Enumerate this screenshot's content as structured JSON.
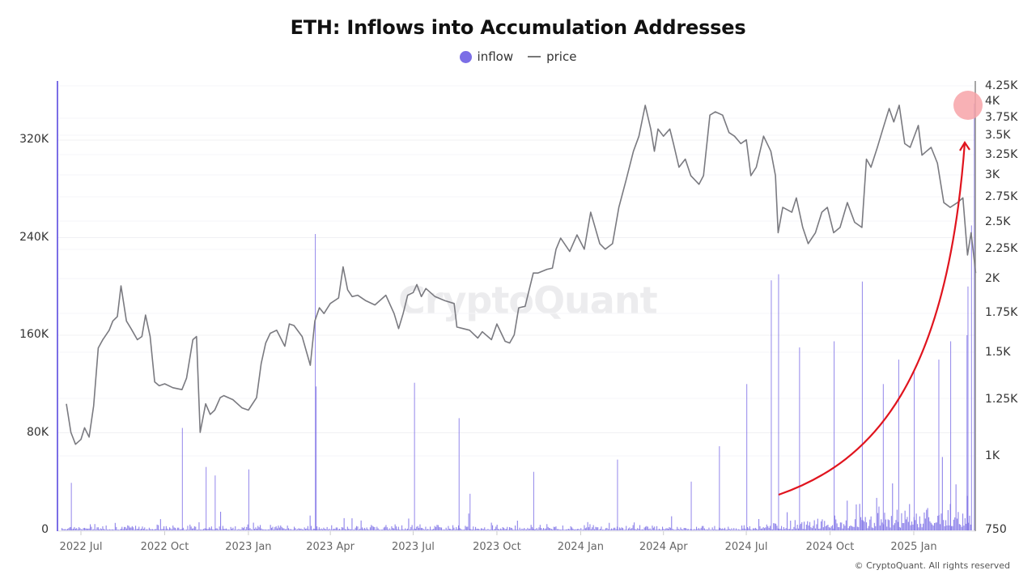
{
  "title": "ETH: Inflows into Accumulation Addresses",
  "legend": [
    {
      "label": "inflow",
      "color": "#7b6ee6",
      "marker": "circle"
    },
    {
      "label": "price",
      "color": "#777777",
      "marker": "line"
    }
  ],
  "watermark": "CryptoQuant",
  "copyright": "© CryptoQuant. All rights reserved",
  "chart_data": {
    "type": "bar+line",
    "title": "ETH: Inflows into Accumulation Addresses",
    "xlabel": "",
    "ylabel_left": "inflow",
    "ylabel_right": "price",
    "x_tick_labels": [
      "2022 Jul",
      "2022 Oct",
      "2023 Jan",
      "2023 Apr",
      "2023 Jul",
      "2023 Oct",
      "2024 Jan",
      "2024 Apr",
      "2024 Jul",
      "2024 Oct",
      "2025 Jan"
    ],
    "y_left_ticks": [
      "0",
      "80K",
      "160K",
      "240K",
      "320K"
    ],
    "y_left_range": [
      0,
      360000
    ],
    "y_right_ticks": [
      "750",
      "1K",
      "1.25K",
      "1.5K",
      "1.75K",
      "2K",
      "2.25K",
      "2.5K",
      "2.75K",
      "3K",
      "3.25K",
      "3.5K",
      "3.75K",
      "4K",
      "4.25K"
    ],
    "y_right_range": [
      750,
      4300
    ],
    "y_right_scale": "log",
    "grid": true,
    "legend_position": "top",
    "series": [
      {
        "name": "price",
        "type": "line",
        "axis": "right",
        "color": "#7a7a80",
        "points": [
          [
            "2022-06-15",
            1230
          ],
          [
            "2022-06-20",
            1100
          ],
          [
            "2022-06-25",
            1050
          ],
          [
            "2022-07-01",
            1070
          ],
          [
            "2022-07-05",
            1120
          ],
          [
            "2022-07-10",
            1080
          ],
          [
            "2022-07-15",
            1220
          ],
          [
            "2022-07-20",
            1530
          ],
          [
            "2022-07-25",
            1580
          ],
          [
            "2022-08-01",
            1640
          ],
          [
            "2022-08-05",
            1700
          ],
          [
            "2022-08-10",
            1730
          ],
          [
            "2022-08-14",
            1950
          ],
          [
            "2022-08-20",
            1700
          ],
          [
            "2022-08-25",
            1650
          ],
          [
            "2022-09-01",
            1580
          ],
          [
            "2022-09-06",
            1600
          ],
          [
            "2022-09-10",
            1740
          ],
          [
            "2022-09-15",
            1600
          ],
          [
            "2022-09-20",
            1340
          ],
          [
            "2022-09-25",
            1320
          ],
          [
            "2022-10-01",
            1330
          ],
          [
            "2022-10-10",
            1310
          ],
          [
            "2022-10-20",
            1300
          ],
          [
            "2022-10-25",
            1360
          ],
          [
            "2022-11-01",
            1580
          ],
          [
            "2022-11-05",
            1600
          ],
          [
            "2022-11-09",
            1100
          ],
          [
            "2022-11-15",
            1230
          ],
          [
            "2022-11-20",
            1180
          ],
          [
            "2022-11-25",
            1200
          ],
          [
            "2022-12-01",
            1260
          ],
          [
            "2022-12-05",
            1270
          ],
          [
            "2022-12-15",
            1250
          ],
          [
            "2022-12-25",
            1210
          ],
          [
            "2023-01-01",
            1200
          ],
          [
            "2023-01-10",
            1260
          ],
          [
            "2023-01-15",
            1440
          ],
          [
            "2023-01-20",
            1560
          ],
          [
            "2023-01-25",
            1620
          ],
          [
            "2023-02-01",
            1640
          ],
          [
            "2023-02-10",
            1540
          ],
          [
            "2023-02-15",
            1680
          ],
          [
            "2023-02-20",
            1670
          ],
          [
            "2023-03-01",
            1600
          ],
          [
            "2023-03-10",
            1430
          ],
          [
            "2023-03-15",
            1700
          ],
          [
            "2023-03-20",
            1790
          ],
          [
            "2023-03-25",
            1750
          ],
          [
            "2023-04-01",
            1820
          ],
          [
            "2023-04-10",
            1860
          ],
          [
            "2023-04-15",
            2100
          ],
          [
            "2023-04-20",
            1920
          ],
          [
            "2023-04-25",
            1870
          ],
          [
            "2023-05-01",
            1880
          ],
          [
            "2023-05-10",
            1840
          ],
          [
            "2023-05-20",
            1810
          ],
          [
            "2023-06-01",
            1880
          ],
          [
            "2023-06-10",
            1750
          ],
          [
            "2023-06-15",
            1650
          ],
          [
            "2023-06-20",
            1750
          ],
          [
            "2023-06-25",
            1880
          ],
          [
            "2023-07-01",
            1900
          ],
          [
            "2023-07-05",
            1960
          ],
          [
            "2023-07-10",
            1870
          ],
          [
            "2023-07-15",
            1930
          ],
          [
            "2023-07-25",
            1870
          ],
          [
            "2023-08-05",
            1840
          ],
          [
            "2023-08-15",
            1820
          ],
          [
            "2023-08-18",
            1660
          ],
          [
            "2023-08-25",
            1650
          ],
          [
            "2023-09-01",
            1640
          ],
          [
            "2023-09-10",
            1590
          ],
          [
            "2023-09-15",
            1630
          ],
          [
            "2023-09-25",
            1580
          ],
          [
            "2023-10-01",
            1680
          ],
          [
            "2023-10-10",
            1570
          ],
          [
            "2023-10-15",
            1560
          ],
          [
            "2023-10-20",
            1610
          ],
          [
            "2023-10-25",
            1790
          ],
          [
            "2023-11-01",
            1800
          ],
          [
            "2023-11-10",
            2050
          ],
          [
            "2023-11-15",
            2050
          ],
          [
            "2023-11-25",
            2080
          ],
          [
            "2023-12-01",
            2090
          ],
          [
            "2023-12-05",
            2250
          ],
          [
            "2023-12-10",
            2350
          ],
          [
            "2023-12-20",
            2230
          ],
          [
            "2023-12-28",
            2380
          ],
          [
            "2024-01-05",
            2250
          ],
          [
            "2024-01-12",
            2600
          ],
          [
            "2024-01-15",
            2510
          ],
          [
            "2024-01-22",
            2300
          ],
          [
            "2024-01-28",
            2250
          ],
          [
            "2024-02-05",
            2300
          ],
          [
            "2024-02-12",
            2650
          ],
          [
            "2024-02-20",
            2950
          ],
          [
            "2024-02-28",
            3300
          ],
          [
            "2024-03-05",
            3500
          ],
          [
            "2024-03-12",
            3950
          ],
          [
            "2024-03-18",
            3600
          ],
          [
            "2024-03-22",
            3300
          ],
          [
            "2024-03-26",
            3600
          ],
          [
            "2024-04-01",
            3500
          ],
          [
            "2024-04-08",
            3600
          ],
          [
            "2024-04-12",
            3400
          ],
          [
            "2024-04-18",
            3100
          ],
          [
            "2024-04-25",
            3200
          ],
          [
            "2024-05-01",
            3000
          ],
          [
            "2024-05-10",
            2900
          ],
          [
            "2024-05-15",
            3000
          ],
          [
            "2024-05-22",
            3800
          ],
          [
            "2024-05-28",
            3850
          ],
          [
            "2024-06-05",
            3800
          ],
          [
            "2024-06-12",
            3550
          ],
          [
            "2024-06-18",
            3500
          ],
          [
            "2024-06-25",
            3400
          ],
          [
            "2024-07-01",
            3450
          ],
          [
            "2024-07-06",
            3000
          ],
          [
            "2024-07-12",
            3100
          ],
          [
            "2024-07-20",
            3500
          ],
          [
            "2024-07-28",
            3300
          ],
          [
            "2024-08-02",
            3000
          ],
          [
            "2024-08-05",
            2400
          ],
          [
            "2024-08-10",
            2650
          ],
          [
            "2024-08-20",
            2600
          ],
          [
            "2024-08-25",
            2750
          ],
          [
            "2024-09-01",
            2450
          ],
          [
            "2024-09-07",
            2300
          ],
          [
            "2024-09-15",
            2400
          ],
          [
            "2024-09-22",
            2600
          ],
          [
            "2024-09-28",
            2650
          ],
          [
            "2024-10-05",
            2400
          ],
          [
            "2024-10-12",
            2450
          ],
          [
            "2024-10-20",
            2700
          ],
          [
            "2024-10-28",
            2500
          ],
          [
            "2024-11-05",
            2450
          ],
          [
            "2024-11-10",
            3200
          ],
          [
            "2024-11-15",
            3100
          ],
          [
            "2024-11-22",
            3350
          ],
          [
            "2024-11-28",
            3600
          ],
          [
            "2024-12-05",
            3900
          ],
          [
            "2024-12-10",
            3700
          ],
          [
            "2024-12-16",
            3950
          ],
          [
            "2024-12-22",
            3400
          ],
          [
            "2024-12-28",
            3350
          ],
          [
            "2025-01-06",
            3650
          ],
          [
            "2025-01-10",
            3250
          ],
          [
            "2025-01-15",
            3300
          ],
          [
            "2025-01-20",
            3350
          ],
          [
            "2025-01-27",
            3150
          ],
          [
            "2025-02-03",
            2700
          ],
          [
            "2025-02-10",
            2650
          ],
          [
            "2025-02-18",
            2700
          ],
          [
            "2025-02-24",
            2750
          ],
          [
            "2025-03-01",
            2200
          ],
          [
            "2025-03-05",
            2400
          ],
          [
            "2025-03-10",
            2050
          ]
        ]
      },
      {
        "name": "inflow",
        "type": "bar",
        "axis": "left",
        "color": "#7b6ee6",
        "notable_spikes": [
          [
            "2022-06-20",
            39000
          ],
          [
            "2022-10-20",
            84000
          ],
          [
            "2022-11-15",
            52000
          ],
          [
            "2022-11-25",
            45000
          ],
          [
            "2023-01-01",
            50000
          ],
          [
            "2023-03-15",
            243000
          ],
          [
            "2023-03-16",
            118000
          ],
          [
            "2023-07-02",
            121000
          ],
          [
            "2023-08-20",
            92000
          ],
          [
            "2023-09-01",
            30000
          ],
          [
            "2023-11-10",
            48000
          ],
          [
            "2024-02-10",
            58000
          ],
          [
            "2024-05-01",
            40000
          ],
          [
            "2024-06-01",
            69000
          ],
          [
            "2024-07-01",
            120000
          ],
          [
            "2024-07-28",
            205000
          ],
          [
            "2024-08-05",
            210000
          ],
          [
            "2024-08-28",
            150000
          ],
          [
            "2024-10-05",
            155000
          ],
          [
            "2024-11-05",
            204000
          ],
          [
            "2024-11-28",
            120000
          ],
          [
            "2024-12-15",
            140000
          ],
          [
            "2025-01-01",
            130000
          ],
          [
            "2025-01-28",
            140000
          ],
          [
            "2025-02-10",
            155000
          ],
          [
            "2025-02-28",
            160000
          ],
          [
            "2025-03-01",
            200000
          ],
          [
            "2025-03-05",
            250000
          ],
          [
            "2025-03-08",
            350000
          ]
        ]
      }
    ],
    "annotations": [
      {
        "type": "arrow",
        "color": "#e0141e",
        "from": [
          "2024-08-05",
          27000
        ],
        "to": [
          "2025-03-05",
          320000
        ],
        "shape": "curve"
      },
      {
        "type": "circle",
        "color": "#f7a3a8",
        "at": [
          "2025-03-08",
          4000
        ]
      }
    ]
  }
}
